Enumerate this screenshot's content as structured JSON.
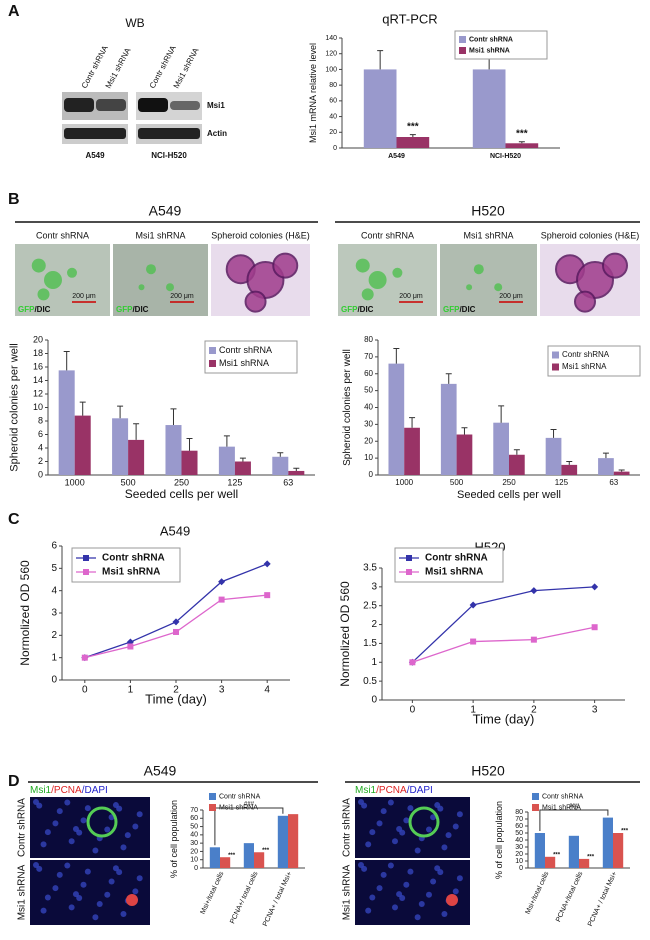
{
  "panel_letters": [
    "A",
    "B",
    "C",
    "D"
  ],
  "western_blot": {
    "title": "WB",
    "lanes": [
      "Contr shRNA",
      "Msi1 shRNA",
      "Contr shRNA",
      "Msi1 shRNA"
    ],
    "bands": [
      "Msi1",
      "Actin"
    ],
    "cell_lines": [
      "A549",
      "NCI-H520"
    ]
  },
  "spheroid_images": {
    "headers": [
      "A549",
      "H520"
    ],
    "captions": [
      "Contr shRNA",
      "Msi1 shRNA",
      "Spheroid colonies (H&E)"
    ],
    "stain": [
      "GFP",
      "/DIC"
    ],
    "scale_bar": "200 μm"
  },
  "immunofluorescence": {
    "headers": [
      "A549",
      "H520"
    ],
    "stain": [
      "Msi1",
      "/PCNA",
      "/DAPI"
    ],
    "rows": [
      "Contr shRNA",
      "Msi1 shRNA"
    ]
  },
  "chart_data": [
    {
      "type": "bar",
      "title": "qRT-PCR",
      "ylabel": "Msi1 mRNA relative level",
      "categories": [
        "A549",
        "NCI-H520"
      ],
      "series": [
        {
          "name": "Contr shRNA",
          "color": "#9999cc",
          "values": [
            100,
            100
          ],
          "errors": [
            24,
            17
          ]
        },
        {
          "name": "Msi1 shRNA",
          "color": "#993366",
          "values": [
            14,
            6
          ],
          "errors": [
            3,
            2
          ],
          "significance": [
            "***",
            "***"
          ]
        }
      ],
      "ylim": [
        0,
        140
      ],
      "yticks": [
        0,
        20,
        40,
        60,
        80,
        100,
        120,
        140
      ],
      "legend": "upper right",
      "grid": false
    },
    {
      "type": "bar",
      "ylabel": "Spheroid colonies per well",
      "xlabel": "Seeded cells per well",
      "categories": [
        "1000",
        "500",
        "250",
        "125",
        "63"
      ],
      "series": [
        {
          "name": "Contr shRNA",
          "color": "#9999cc",
          "values": [
            15.5,
            8.4,
            7.4,
            4.2,
            2.7
          ],
          "errors": [
            2.8,
            1.8,
            2.4,
            1.6,
            0.6
          ]
        },
        {
          "name": "Msi1 shRNA",
          "color": "#993366",
          "values": [
            8.8,
            5.2,
            3.6,
            2.0,
            0.6
          ],
          "errors": [
            2.0,
            2.4,
            1.8,
            0.5,
            0.4
          ]
        }
      ],
      "ylim": [
        0,
        20
      ],
      "yticks": [
        0,
        2,
        4,
        6,
        8,
        10,
        12,
        14,
        16,
        18,
        20
      ],
      "legend": "upper right",
      "grid": false
    },
    {
      "type": "bar",
      "ylabel": "Spheroid colonies per well",
      "xlabel": "Seeded cells per well",
      "categories": [
        "1000",
        "500",
        "250",
        "125",
        "63"
      ],
      "series": [
        {
          "name": "Contr shRNA",
          "color": "#9999cc",
          "values": [
            66,
            54,
            31,
            22,
            10
          ],
          "errors": [
            9,
            6,
            10,
            5,
            3
          ]
        },
        {
          "name": "Msi1 shRNA",
          "color": "#993366",
          "values": [
            28,
            24,
            12,
            6,
            2
          ],
          "errors": [
            6,
            4,
            3,
            2,
            1
          ]
        }
      ],
      "ylim": [
        0,
        80
      ],
      "yticks": [
        0,
        10,
        20,
        30,
        40,
        50,
        60,
        70,
        80
      ],
      "legend": "upper right",
      "grid": false
    },
    {
      "type": "line",
      "title": "A549",
      "ylabel": "Normolized OD 560",
      "xlabel": "Time (day)",
      "x": [
        0,
        1,
        2,
        3,
        4
      ],
      "series": [
        {
          "name": "Contr shRNA",
          "color": "#3333aa",
          "marker": "diamond",
          "values": [
            1,
            1.7,
            2.6,
            4.4,
            5.2
          ]
        },
        {
          "name": "Msi1 shRNA",
          "color": "#dd66cc",
          "marker": "square",
          "values": [
            1,
            1.5,
            2.15,
            3.6,
            3.8
          ]
        }
      ],
      "xlim": [
        -0.5,
        4.5
      ],
      "xticks": [
        0,
        1,
        2,
        3,
        4
      ],
      "ylim": [
        0,
        6
      ],
      "yticks": [
        0,
        1,
        2,
        3,
        4,
        5,
        6
      ],
      "legend": "upper left",
      "grid": false
    },
    {
      "type": "line",
      "title": "H520",
      "ylabel": "Normolized OD 560",
      "xlabel": "Time (day)",
      "x": [
        0,
        1,
        2,
        3
      ],
      "series": [
        {
          "name": "Contr shRNA",
          "color": "#3333aa",
          "marker": "diamond",
          "values": [
            1,
            2.52,
            2.9,
            3.0
          ]
        },
        {
          "name": "Msi1 shRNA",
          "color": "#dd66cc",
          "marker": "square",
          "values": [
            1,
            1.55,
            1.6,
            1.93
          ]
        }
      ],
      "xlim": [
        -0.5,
        3.5
      ],
      "xticks": [
        0,
        1,
        2,
        3
      ],
      "ylim": [
        0,
        3.5
      ],
      "yticks": [
        0,
        0.5,
        1,
        1.5,
        2,
        2.5,
        3,
        3.5
      ],
      "legend": "upper left",
      "grid": false
    },
    {
      "type": "bar",
      "ylabel": "% of cell population",
      "categories": [
        "Msi+/total cells",
        "PCNA+/ total cells",
        "PCNA+ / total Msi+"
      ],
      "series": [
        {
          "name": "Contr shRNA",
          "color": "#4a7fc9",
          "values": [
            25,
            30,
            63
          ]
        },
        {
          "name": "Msi1 shRNA",
          "color": "#d9534f",
          "values": [
            13,
            19,
            65
          ],
          "significance": [
            "***",
            "***",
            null
          ]
        }
      ],
      "bracket": "###",
      "ylim": [
        0,
        70
      ],
      "yticks": [
        0,
        10,
        20,
        30,
        40,
        50,
        60,
        70
      ],
      "legend": "upper left",
      "grid": false
    },
    {
      "type": "bar",
      "ylabel": "% of cell population",
      "categories": [
        "Msi+/total cells",
        "PCNA+/total cells",
        "PCNA+ / total Msi+"
      ],
      "series": [
        {
          "name": "Contr shRNA",
          "color": "#4a7fc9",
          "values": [
            50,
            46,
            72
          ]
        },
        {
          "name": "Msi1 shRNA",
          "color": "#d9534f",
          "values": [
            16,
            13,
            50
          ],
          "significance": [
            "***",
            "***",
            "***"
          ]
        }
      ],
      "bracket": "###",
      "ylim": [
        0,
        80
      ],
      "yticks": [
        0,
        10,
        20,
        30,
        40,
        50,
        60,
        70,
        80
      ],
      "legend": "upper left",
      "grid": false
    }
  ]
}
